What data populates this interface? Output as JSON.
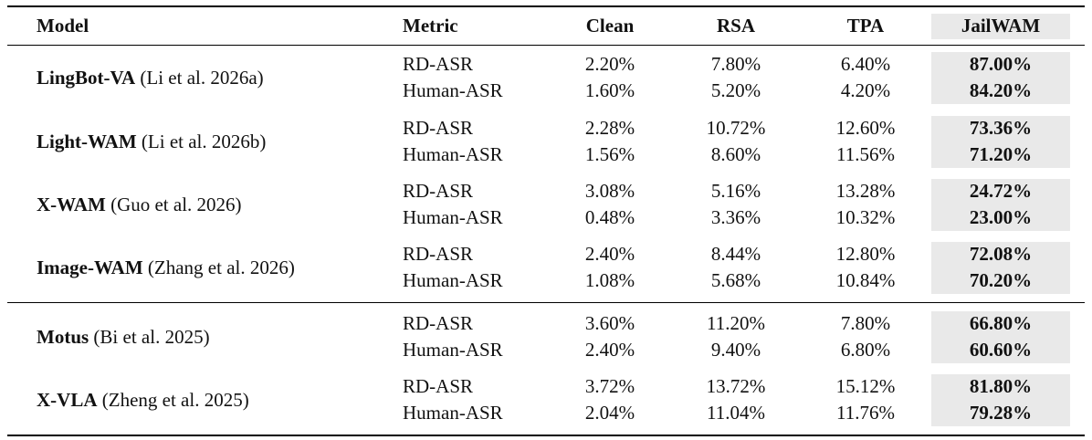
{
  "table": {
    "headers": {
      "model": "Model",
      "metric": "Metric",
      "clean": "Clean",
      "rsa": "RSA",
      "tpa": "TPA",
      "jailwam": "JailWAM"
    },
    "groups": [
      {
        "model_bold": "LingBot-VA",
        "model_cite": " (Li et al. 2026a)",
        "rows": [
          {
            "metric": "RD-ASR",
            "clean": "2.20%",
            "rsa": "7.80%",
            "tpa": "6.40%",
            "jailwam": "87.00%"
          },
          {
            "metric": "Human-ASR",
            "clean": "1.60%",
            "rsa": "5.20%",
            "tpa": "4.20%",
            "jailwam": "84.20%"
          }
        ]
      },
      {
        "model_bold": "Light-WAM",
        "model_cite": " (Li et al. 2026b)",
        "rows": [
          {
            "metric": "RD-ASR",
            "clean": "2.28%",
            "rsa": "10.72%",
            "tpa": "12.60%",
            "jailwam": "73.36%"
          },
          {
            "metric": "Human-ASR",
            "clean": "1.56%",
            "rsa": "8.60%",
            "tpa": "11.56%",
            "jailwam": "71.20%"
          }
        ]
      },
      {
        "model_bold": "X-WAM",
        "model_cite": " (Guo et al. 2026)",
        "rows": [
          {
            "metric": "RD-ASR",
            "clean": "3.08%",
            "rsa": "5.16%",
            "tpa": "13.28%",
            "jailwam": "24.72%"
          },
          {
            "metric": "Human-ASR",
            "clean": "0.48%",
            "rsa": "3.36%",
            "tpa": "10.32%",
            "jailwam": "23.00%"
          }
        ]
      },
      {
        "model_bold": "Image-WAM",
        "model_cite": " (Zhang et al. 2026)",
        "rows": [
          {
            "metric": "RD-ASR",
            "clean": "2.40%",
            "rsa": "8.44%",
            "tpa": "12.80%",
            "jailwam": "72.08%"
          },
          {
            "metric": "Human-ASR",
            "clean": "1.08%",
            "rsa": "5.68%",
            "tpa": "10.84%",
            "jailwam": "70.20%"
          }
        ]
      },
      {
        "model_bold": "Motus",
        "model_cite": " (Bi et al. 2025)",
        "rows": [
          {
            "metric": "RD-ASR",
            "clean": "3.60%",
            "rsa": "11.20%",
            "tpa": "7.80%",
            "jailwam": "66.80%"
          },
          {
            "metric": "Human-ASR",
            "clean": "2.40%",
            "rsa": "9.40%",
            "tpa": "6.80%",
            "jailwam": "60.60%"
          }
        ]
      },
      {
        "model_bold": "X-VLA",
        "model_cite": " (Zheng et al. 2025)",
        "rows": [
          {
            "metric": "RD-ASR",
            "clean": "3.72%",
            "rsa": "13.72%",
            "tpa": "15.12%",
            "jailwam": "81.80%"
          },
          {
            "metric": "Human-ASR",
            "clean": "2.04%",
            "rsa": "11.04%",
            "tpa": "11.76%",
            "jailwam": "79.28%"
          }
        ]
      }
    ],
    "highlight_color": "#e9e9e9"
  }
}
